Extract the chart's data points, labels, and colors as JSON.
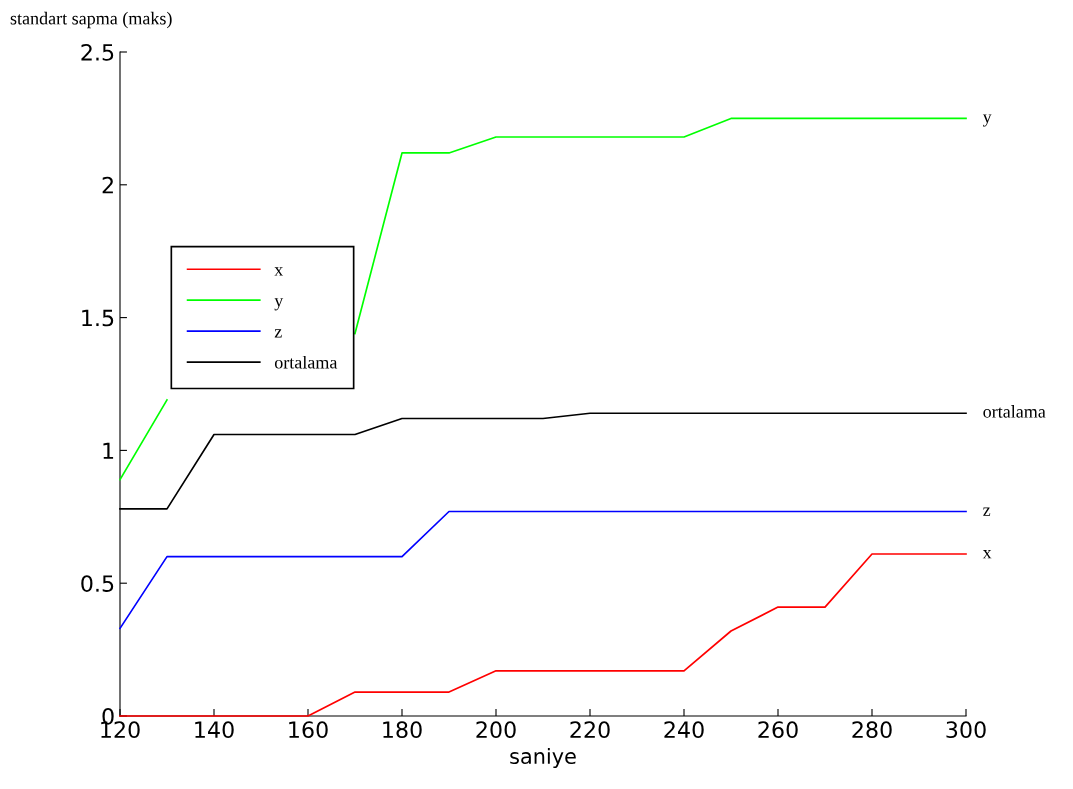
{
  "chart_data": {
    "type": "line",
    "xlabel": "saniye",
    "ylabel": "standart sapma (maks)",
    "x": [
      120,
      130,
      140,
      150,
      160,
      170,
      180,
      190,
      200,
      210,
      220,
      230,
      240,
      250,
      260,
      270,
      280,
      290,
      300
    ],
    "series": [
      {
        "name": "x",
        "color": "#ff0000",
        "values": [
          0,
          0,
          0,
          0,
          0,
          0.09,
          0.09,
          0.09,
          0.17,
          0.17,
          0.17,
          0.17,
          0.17,
          0.32,
          0.41,
          0.41,
          0.61,
          0.61,
          0.61
        ]
      },
      {
        "name": "y",
        "color": "#00ff00",
        "values": [
          0.89,
          1.19,
          null,
          null,
          null,
          1.44,
          2.12,
          2.12,
          2.18,
          2.18,
          2.18,
          2.18,
          2.18,
          2.25,
          2.25,
          2.25,
          2.25,
          2.25,
          2.25
        ]
      },
      {
        "name": "z",
        "color": "#0000ff",
        "values": [
          0.33,
          0.6,
          0.6,
          0.6,
          0.6,
          0.6,
          0.6,
          0.77,
          0.77,
          0.77,
          0.77,
          0.77,
          0.77,
          0.77,
          0.77,
          0.77,
          0.77,
          0.77,
          0.77
        ]
      },
      {
        "name": "ortalama",
        "color": "#000000",
        "values": [
          0.78,
          0.78,
          1.06,
          1.06,
          1.06,
          1.06,
          1.12,
          1.12,
          1.12,
          1.12,
          1.14,
          1.14,
          1.14,
          1.14,
          1.14,
          1.14,
          1.14,
          1.14,
          1.14
        ]
      }
    ],
    "xlim": [
      120,
      300
    ],
    "xticks": [
      120,
      140,
      160,
      180,
      200,
      220,
      240,
      260,
      280,
      300
    ],
    "ylim": [
      0,
      2.5
    ],
    "yticks": [
      0,
      0.5,
      1,
      1.5,
      2,
      2.5
    ],
    "grid": false,
    "legend": "left",
    "marker": "none",
    "line_style": "solid"
  }
}
